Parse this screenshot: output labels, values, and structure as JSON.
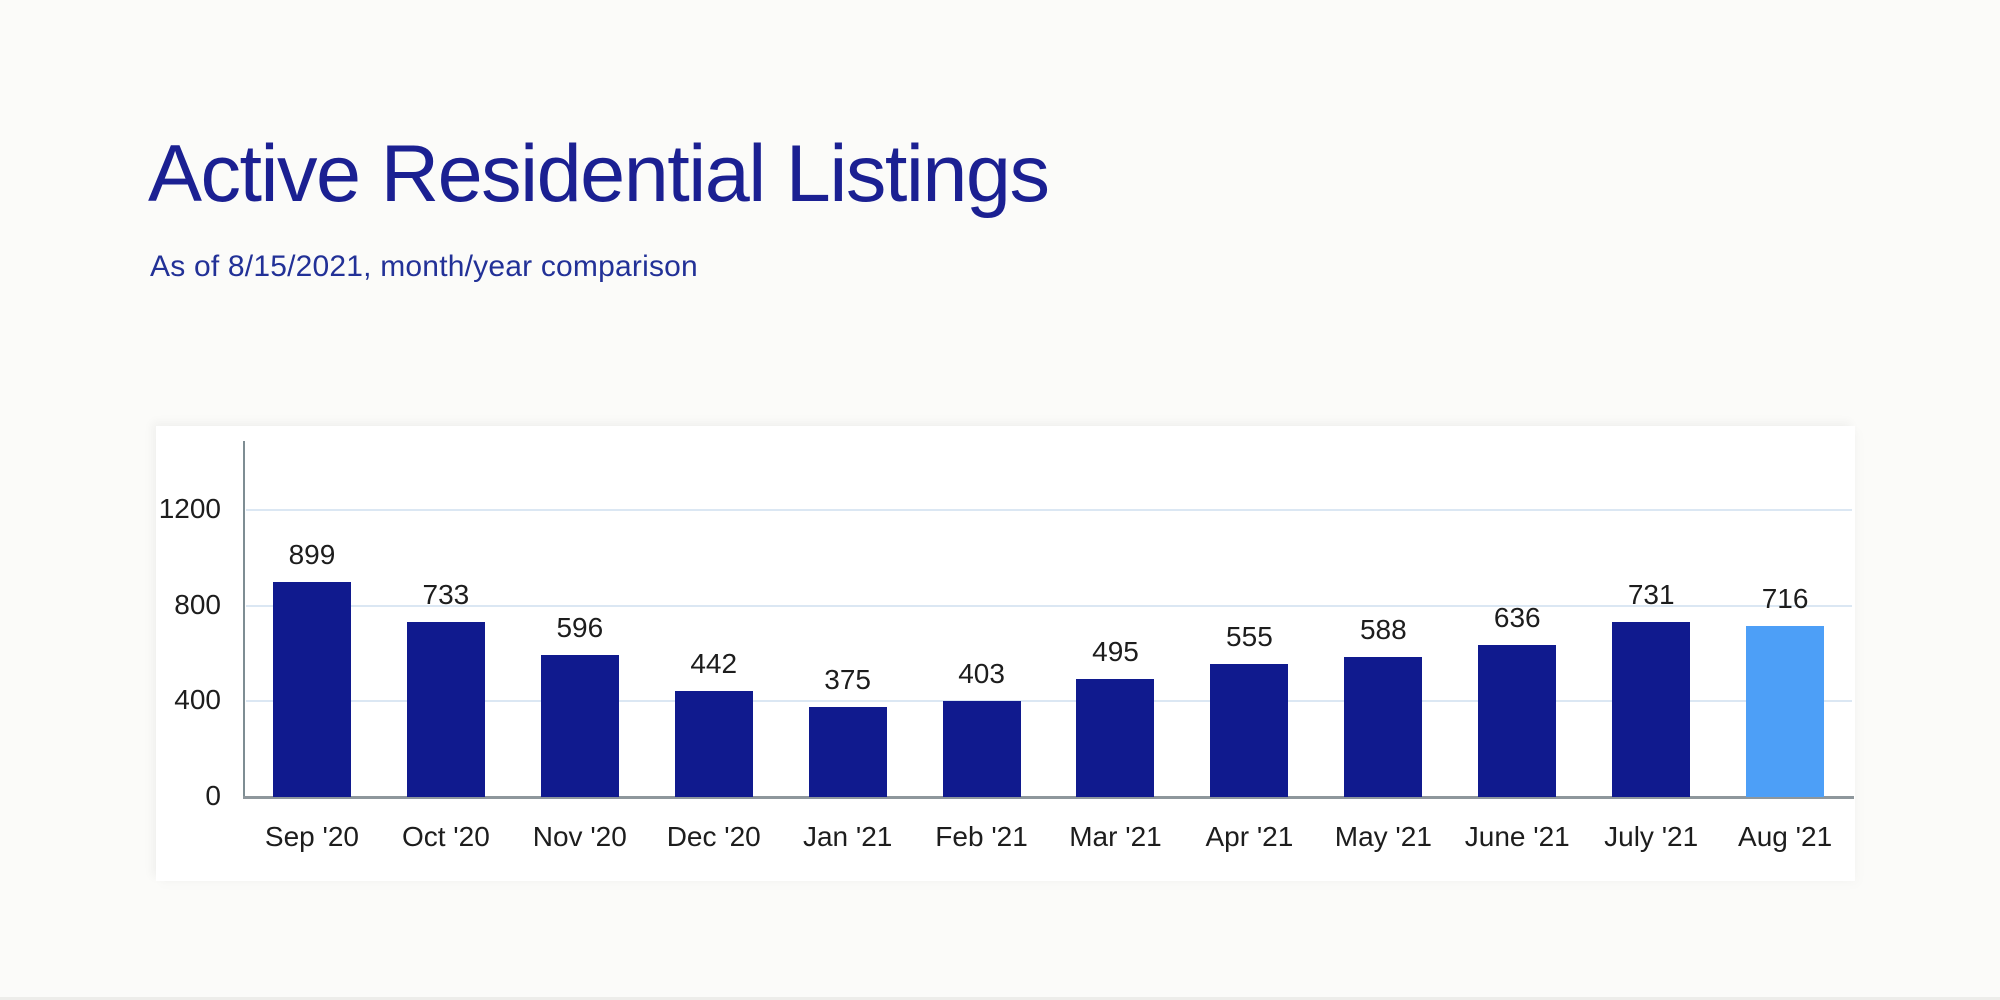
{
  "page": {
    "title": "Active Residential Listings",
    "subtitle": "As of 8/15/2021, month/year comparison"
  },
  "chart_data": {
    "type": "bar",
    "title": "Active Residential Listings",
    "subtitle": "As of 8/15/2021, month/year comparison",
    "categories": [
      "Sep '20",
      "Oct '20",
      "Nov '20",
      "Dec '20",
      "Jan '21",
      "Feb '21",
      "Mar '21",
      "Apr '21",
      "May '21",
      "June '21",
      "July '21",
      "Aug '21"
    ],
    "values": [
      899,
      733,
      596,
      442,
      375,
      403,
      495,
      555,
      588,
      636,
      731,
      716
    ],
    "data_labels": [
      899,
      733,
      596,
      442,
      375,
      403,
      495,
      555,
      588,
      636,
      731,
      716
    ],
    "highlight_index": 11,
    "xlabel": "",
    "ylabel": "",
    "y_ticks": [
      0,
      400,
      800,
      1200
    ],
    "ylim": [
      0,
      1490
    ],
    "grid": "horizontal",
    "legend": "none"
  },
  "colors": {
    "title_text": "#1b2092",
    "subtitle_text": "#223197",
    "bar": "#101a8e",
    "bar_highlight": "#4d9ff7",
    "gridline": "#dbe7f3",
    "y_axis_line": "#7e8d93",
    "x_axis_line": "#8e979c",
    "tick_text": "#1d1d1d",
    "value_text": "#1d1d1d",
    "panel_bg": "#ffffff"
  }
}
